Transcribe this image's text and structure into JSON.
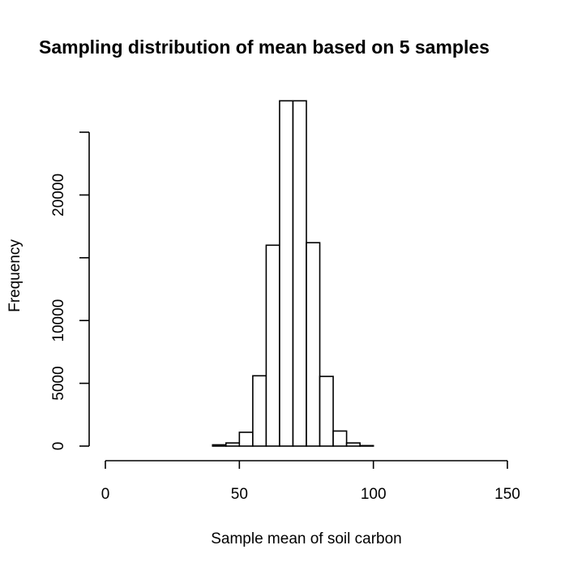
{
  "chart_data": {
    "type": "bar",
    "title": "Sampling distribution of mean based on 5 samples",
    "xlabel": "Sample mean of soil carbon",
    "ylabel": "Frequency",
    "xlim": [
      0,
      150
    ],
    "ylim": [
      0,
      27500
    ],
    "x_ticks": [
      0,
      50,
      100,
      150
    ],
    "y_ticks": [
      0,
      5000,
      10000,
      15000,
      20000,
      25000
    ],
    "x_tick_labels": [
      "0",
      "50",
      "100",
      "150"
    ],
    "y_tick_labels": [
      "0",
      "5000",
      "10000",
      "",
      "20000",
      ""
    ],
    "bins": [
      {
        "from": 40,
        "to": 45,
        "count": 100
      },
      {
        "from": 45,
        "to": 50,
        "count": 250
      },
      {
        "from": 50,
        "to": 55,
        "count": 1100
      },
      {
        "from": 55,
        "to": 60,
        "count": 5600
      },
      {
        "from": 60,
        "to": 65,
        "count": 16000
      },
      {
        "from": 65,
        "to": 70,
        "count": 27500
      },
      {
        "from": 70,
        "to": 75,
        "count": 27500
      },
      {
        "from": 75,
        "to": 80,
        "count": 16200
      },
      {
        "from": 80,
        "to": 85,
        "count": 5550
      },
      {
        "from": 85,
        "to": 90,
        "count": 1200
      },
      {
        "from": 90,
        "to": 95,
        "count": 250
      },
      {
        "from": 95,
        "to": 100,
        "count": 40
      }
    ],
    "grid": false,
    "legend": "none"
  }
}
